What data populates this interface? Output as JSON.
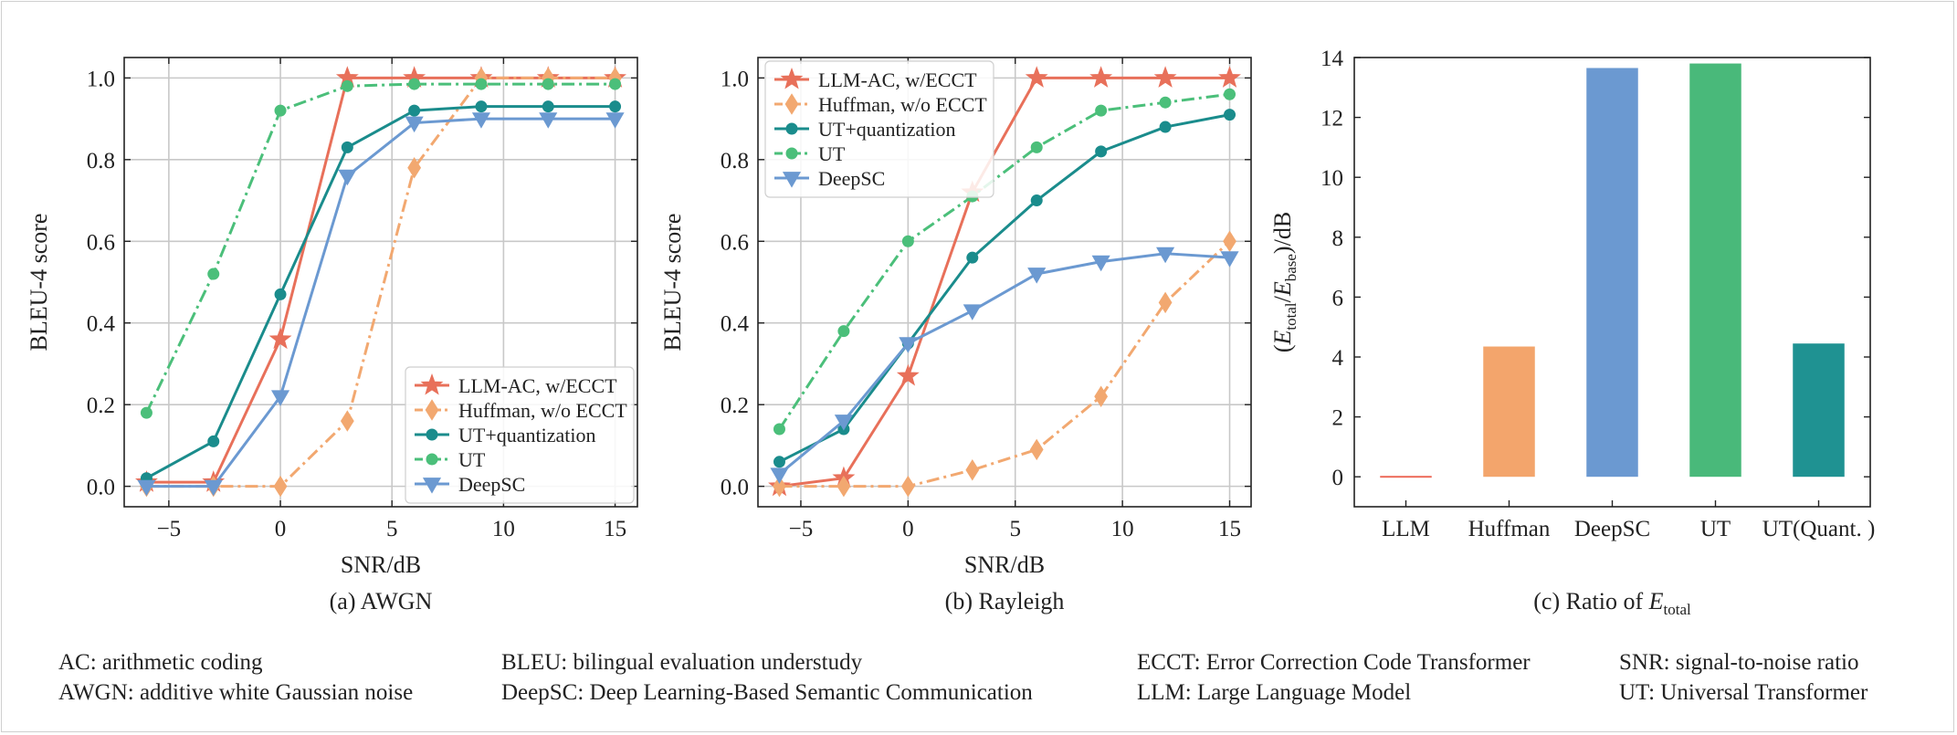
{
  "chart_data": [
    {
      "type": "line",
      "caption": "(a) AWGN",
      "xlabel": "SNR/dB",
      "ylabel": "BLEU-4 score",
      "xlim": [
        -7,
        16
      ],
      "ylim": [
        -0.05,
        1.05
      ],
      "xticks": [
        -5,
        0,
        5,
        10,
        15
      ],
      "yticks": [
        0.0,
        0.2,
        0.4,
        0.6,
        0.8,
        1.0
      ],
      "grid": true,
      "legend": "lower-right",
      "x": [
        -6,
        -3,
        0,
        3,
        6,
        9,
        12,
        15
      ],
      "series": [
        {
          "name": "LLM-AC, w/ECCT",
          "color": "#e8705a",
          "marker": "star",
          "dash": "solid",
          "values": [
            0.01,
            0.01,
            0.36,
            1.0,
            1.0,
            1.0,
            1.0,
            1.0
          ]
        },
        {
          "name": "Huffman, w/o ECCT",
          "color": "#f2a870",
          "marker": "diamond",
          "dash": "dashdot",
          "values": [
            0.0,
            0.0,
            0.0,
            0.16,
            0.78,
            1.0,
            1.0,
            1.0
          ]
        },
        {
          "name": "UT+quantization",
          "color": "#1a8c8c",
          "marker": "circle",
          "dash": "solid",
          "values": [
            0.02,
            0.11,
            0.47,
            0.83,
            0.92,
            0.93,
            0.93,
            0.93
          ]
        },
        {
          "name": "UT",
          "color": "#4bbf7a",
          "marker": "circle",
          "dash": "dashdot",
          "values": [
            0.18,
            0.52,
            0.92,
            0.98,
            0.985,
            0.985,
            0.985,
            0.985
          ]
        },
        {
          "name": "DeepSC",
          "color": "#6b99d1",
          "marker": "tri-down",
          "dash": "solid",
          "values": [
            0.0,
            0.0,
            0.22,
            0.76,
            0.89,
            0.9,
            0.9,
            0.9
          ]
        }
      ]
    },
    {
      "type": "line",
      "caption": "(b) Rayleigh",
      "xlabel": "SNR/dB",
      "ylabel": "BLEU-4 score",
      "xlim": [
        -7,
        16
      ],
      "ylim": [
        -0.05,
        1.05
      ],
      "xticks": [
        -5,
        0,
        5,
        10,
        15
      ],
      "yticks": [
        0.0,
        0.2,
        0.4,
        0.6,
        0.8,
        1.0
      ],
      "grid": true,
      "legend": "upper-left",
      "x": [
        -6,
        -3,
        0,
        3,
        6,
        9,
        12,
        15
      ],
      "series": [
        {
          "name": "LLM-AC, w/ECCT",
          "color": "#e8705a",
          "marker": "star",
          "dash": "solid",
          "values": [
            0.0,
            0.02,
            0.27,
            0.72,
            1.0,
            1.0,
            1.0,
            1.0
          ]
        },
        {
          "name": "Huffman, w/o ECCT",
          "color": "#f2a870",
          "marker": "diamond",
          "dash": "dashdot",
          "values": [
            0.0,
            0.0,
            0.0,
            0.04,
            0.09,
            0.22,
            0.45,
            0.6
          ]
        },
        {
          "name": "UT+quantization",
          "color": "#1a8c8c",
          "marker": "circle",
          "dash": "solid",
          "values": [
            0.06,
            0.14,
            0.35,
            0.56,
            0.7,
            0.82,
            0.88,
            0.91
          ]
        },
        {
          "name": "UT",
          "color": "#4bbf7a",
          "marker": "circle",
          "dash": "dashdot",
          "values": [
            0.14,
            0.38,
            0.6,
            0.71,
            0.83,
            0.92,
            0.94,
            0.96
          ]
        },
        {
          "name": "DeepSC",
          "color": "#6b99d1",
          "marker": "tri-down",
          "dash": "solid",
          "values": [
            0.03,
            0.16,
            0.35,
            0.43,
            0.52,
            0.55,
            0.57,
            0.56
          ]
        }
      ]
    },
    {
      "type": "bar",
      "caption": "(c) Ratio of E_total",
      "ylabel": "(E_total/E_base)/dB",
      "ylim": [
        -1,
        14
      ],
      "yticks": [
        0,
        2,
        4,
        6,
        8,
        10,
        12,
        14
      ],
      "grid": false,
      "categories": [
        "LLM",
        "Huffman",
        "DeepSC",
        "UT",
        "UT(Quant. )"
      ],
      "values": [
        0.0,
        4.35,
        13.65,
        13.8,
        4.45
      ],
      "colors": [
        "#ed6a5a",
        "#f3a56c",
        "#6b99d1",
        "#49b97a",
        "#1f9292"
      ]
    }
  ],
  "footnotes": [
    {
      "text": "AC: arithmetic coding"
    },
    {
      "text": "AWGN: additive white Gaussian noise"
    },
    {
      "text": "BLEU: bilingual evaluation understudy"
    },
    {
      "text": "DeepSC: Deep Learning-Based Semantic Communication"
    },
    {
      "text": "ECCT: Error Correction Code Transformer"
    },
    {
      "text": "LLM: Large Language Model"
    },
    {
      "text": "SNR: signal-to-noise ratio"
    },
    {
      "text": "UT: Universal Transformer"
    }
  ]
}
